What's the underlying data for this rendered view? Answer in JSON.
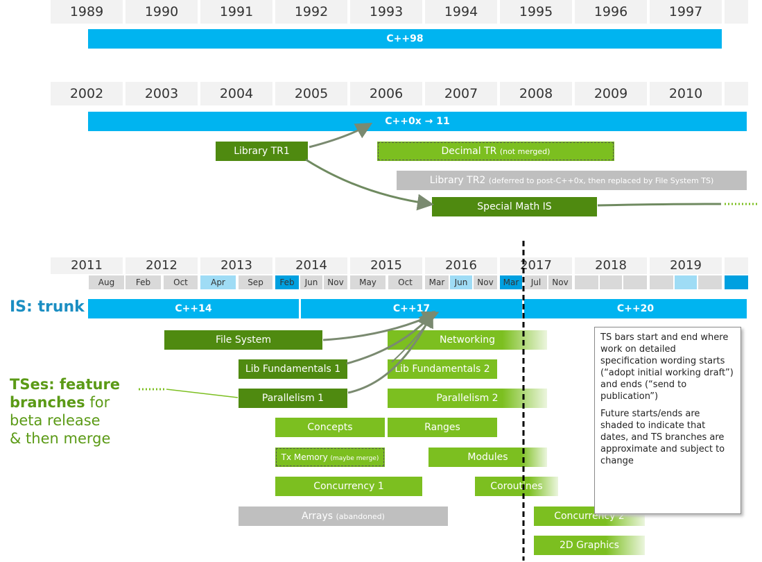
{
  "row1": {
    "years": [
      "1989",
      "1990",
      "1991",
      "1992",
      "1993",
      "1994",
      "1995",
      "1996",
      "1997"
    ],
    "trunk_label": "C++98"
  },
  "row2": {
    "years": [
      "2002",
      "2003",
      "2004",
      "2005",
      "2006",
      "2007",
      "2008",
      "2009",
      "2010"
    ],
    "trunk_label": "C++0x → 11",
    "library_tr1": "Library TR1",
    "decimal_tr": "Decimal TR",
    "decimal_tr_note": "(not merged)",
    "library_tr2": "Library TR2",
    "library_tr2_note": "(deferred to post-C++0x, then replaced by File System TS)",
    "special_math": "Special Math IS"
  },
  "row3": {
    "years": [
      "2011",
      "2012",
      "2013",
      "2014",
      "2015",
      "2016",
      "2017",
      "2018",
      "2019"
    ],
    "months": [
      "Aug",
      "Feb",
      "Oct",
      "Apr",
      "Sep",
      "Feb",
      "Jun",
      "Nov",
      "May",
      "Oct",
      "Mar",
      "Jun",
      "Nov",
      "Mar",
      "Jul",
      "Nov"
    ],
    "trunk_title": "IS: trunk",
    "trunk_segments": [
      "C++14",
      "C++17",
      "C++20"
    ],
    "ts_title_bold": "TSes: feature branches",
    "ts_title_rest": "for beta release & then merge",
    "ts_title_lines": [
      "TSes: feature",
      "branches",
      "for",
      "beta release",
      "& then merge"
    ],
    "bars": {
      "file_system": "File System",
      "networking": "Networking",
      "lib_fund_1": "Lib Fundamentals 1",
      "lib_fund_2": "Lib Fundamentals 2",
      "parallelism_1": "Parallelism 1",
      "parallelism_2": "Parallelism 2",
      "concepts": "Concepts",
      "ranges": "Ranges",
      "tx_memory": "Tx Memory",
      "tx_memory_note": "(maybe merge)",
      "modules": "Modules",
      "concurrency_1": "Concurrency 1",
      "coroutines": "Coroutines",
      "arrays": "Arrays",
      "arrays_note": "(abandoned)",
      "concurrency_2": "Concurrency 2",
      "graphics_2d": "2D Graphics"
    },
    "notes": [
      "TS bars start and end where work on detailed specification wording starts (“adopt initial working draft”) and ends (“send to publication”)",
      "Future starts/ends are shaded to indicate that dates, and TS branches are approximate and subject to change"
    ]
  },
  "colors": {
    "trunk": "#00b4f0",
    "dark_green": "#4f8a10",
    "light_green": "#7cbf20",
    "gray": "#bfbfbf",
    "month_highlight": "#9fdcf5",
    "month_strong": "#00a0e0",
    "title_blue": "#1b8ec2",
    "title_green": "#5b9a16"
  }
}
